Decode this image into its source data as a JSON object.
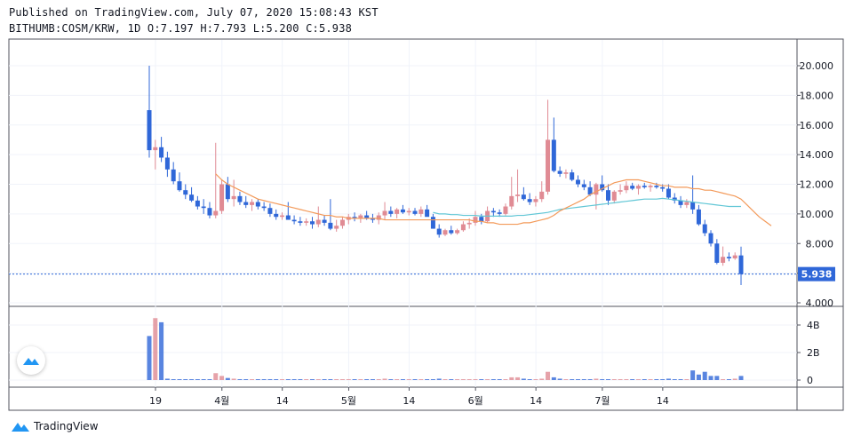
{
  "header": {
    "published": "Published on TradingView.com, July 07, 2020 15:08:43 KST",
    "symbol_line": "BITHUMB:COSM/KRW, 1D O:7.197 H:7.793 L:5.200 C:5.938"
  },
  "footer": {
    "brand": "TradingView"
  },
  "colors": {
    "up": "#e08b94",
    "down": "#2f67d8",
    "ma_fast": "#f39a5a",
    "ma_slow": "#62c7d6",
    "price_line": "#2f67d8"
  },
  "chart_data": {
    "type": "candlestick",
    "price_axis": {
      "ticks": [
        "20.000",
        "18.000",
        "16.000",
        "14.000",
        "12.000",
        "10.000",
        "8.000",
        "6.000",
        "4.000"
      ],
      "ylim": [
        4,
        21
      ]
    },
    "volume_axis": {
      "ticks": [
        "4B",
        "2B",
        "0"
      ]
    },
    "x_ticks": [
      "19",
      "4월",
      "14",
      "5월",
      "14",
      "6월",
      "14",
      "7월",
      "14"
    ],
    "last_price": "5.938",
    "candles": [
      [
        17.0,
        20.0,
        13.8,
        14.3
      ],
      [
        14.3,
        15.0,
        13.0,
        14.5
      ],
      [
        14.5,
        15.2,
        13.5,
        13.8
      ],
      [
        13.8,
        14.2,
        12.5,
        13.0
      ],
      [
        13.0,
        13.5,
        12.0,
        12.2
      ],
      [
        12.2,
        12.8,
        11.5,
        11.6
      ],
      [
        11.6,
        12.0,
        11.0,
        11.3
      ],
      [
        11.3,
        11.8,
        10.8,
        10.9
      ],
      [
        10.9,
        11.2,
        10.3,
        10.5
      ],
      [
        10.5,
        11.0,
        10.0,
        10.4
      ],
      [
        10.4,
        10.8,
        9.7,
        9.9
      ],
      [
        9.9,
        14.8,
        9.7,
        10.2
      ],
      [
        10.2,
        12.3,
        10.0,
        12.0
      ],
      [
        12.0,
        12.5,
        10.8,
        11.0
      ],
      [
        11.0,
        12.3,
        10.5,
        11.2
      ],
      [
        11.2,
        11.5,
        10.6,
        10.8
      ],
      [
        10.8,
        11.2,
        10.4,
        10.6
      ],
      [
        10.6,
        11.0,
        10.2,
        10.8
      ],
      [
        10.8,
        11.0,
        10.3,
        10.5
      ],
      [
        10.5,
        10.8,
        10.2,
        10.4
      ],
      [
        10.4,
        10.7,
        9.8,
        10.0
      ],
      [
        10.0,
        10.3,
        9.6,
        9.8
      ],
      [
        9.8,
        10.1,
        9.6,
        9.9
      ],
      [
        9.9,
        10.8,
        9.7,
        9.6
      ],
      [
        9.6,
        9.9,
        9.3,
        9.5
      ],
      [
        9.5,
        9.8,
        9.2,
        9.4
      ],
      [
        9.4,
        9.7,
        9.2,
        9.5
      ],
      [
        9.5,
        9.8,
        9.0,
        9.3
      ],
      [
        9.3,
        10.5,
        9.1,
        9.6
      ],
      [
        9.6,
        9.9,
        9.2,
        9.4
      ],
      [
        9.4,
        11.0,
        8.9,
        9.0
      ],
      [
        9.0,
        9.6,
        8.8,
        9.2
      ],
      [
        9.2,
        9.8,
        9.0,
        9.6
      ],
      [
        9.6,
        10.0,
        9.3,
        9.8
      ],
      [
        9.8,
        10.1,
        9.5,
        9.7
      ],
      [
        9.7,
        10.0,
        9.4,
        9.9
      ],
      [
        9.9,
        10.2,
        9.6,
        9.7
      ],
      [
        9.7,
        10.0,
        9.4,
        9.6
      ],
      [
        9.6,
        10.1,
        9.3,
        9.9
      ],
      [
        9.9,
        10.8,
        9.6,
        10.2
      ],
      [
        10.2,
        10.5,
        9.8,
        10.0
      ],
      [
        10.0,
        10.4,
        9.7,
        10.3
      ],
      [
        10.3,
        10.6,
        10.0,
        10.1
      ],
      [
        10.1,
        10.4,
        9.9,
        10.2
      ],
      [
        10.2,
        10.4,
        9.9,
        10.0
      ],
      [
        10.0,
        10.5,
        9.8,
        10.3
      ],
      [
        10.3,
        10.6,
        9.9,
        9.8
      ],
      [
        9.8,
        10.0,
        9.0,
        9.0
      ],
      [
        9.0,
        9.3,
        8.4,
        8.6
      ],
      [
        8.6,
        9.0,
        8.5,
        8.9
      ],
      [
        8.9,
        9.2,
        8.6,
        8.7
      ],
      [
        8.7,
        9.0,
        8.6,
        8.9
      ],
      [
        8.9,
        9.5,
        8.8,
        9.3
      ],
      [
        9.3,
        9.7,
        9.0,
        9.4
      ],
      [
        9.4,
        10.2,
        9.2,
        9.8
      ],
      [
        9.8,
        10.0,
        9.3,
        9.5
      ],
      [
        9.5,
        10.5,
        9.4,
        10.2
      ],
      [
        10.2,
        10.4,
        9.8,
        10.1
      ],
      [
        10.1,
        10.3,
        9.8,
        10.0
      ],
      [
        10.0,
        10.7,
        9.9,
        10.5
      ],
      [
        10.5,
        12.5,
        10.3,
        11.2
      ],
      [
        11.2,
        13.0,
        10.8,
        11.3
      ],
      [
        11.3,
        11.8,
        10.9,
        11.0
      ],
      [
        11.0,
        11.4,
        10.6,
        10.8
      ],
      [
        10.8,
        11.2,
        10.5,
        11.0
      ],
      [
        11.0,
        12.2,
        10.8,
        11.5
      ],
      [
        11.5,
        17.7,
        11.3,
        15.0
      ],
      [
        15.0,
        16.5,
        12.8,
        12.9
      ],
      [
        12.9,
        13.2,
        12.5,
        12.7
      ],
      [
        12.7,
        13.0,
        12.4,
        12.8
      ],
      [
        12.8,
        13.0,
        12.2,
        12.3
      ],
      [
        12.3,
        12.6,
        11.8,
        12.0
      ],
      [
        12.0,
        12.3,
        11.6,
        11.8
      ],
      [
        11.8,
        12.2,
        11.2,
        11.3
      ],
      [
        11.3,
        12.1,
        10.3,
        12.0
      ],
      [
        12.0,
        12.6,
        11.5,
        11.6
      ],
      [
        11.6,
        12.0,
        10.6,
        10.9
      ],
      [
        10.9,
        11.6,
        10.7,
        11.5
      ],
      [
        11.5,
        12.0,
        11.3,
        11.6
      ],
      [
        11.6,
        12.2,
        11.4,
        11.9
      ],
      [
        11.9,
        12.1,
        11.6,
        11.7
      ],
      [
        11.7,
        12.0,
        11.3,
        11.9
      ],
      [
        11.9,
        12.1,
        11.7,
        11.8
      ],
      [
        11.8,
        12.0,
        11.5,
        11.9
      ],
      [
        11.9,
        12.1,
        11.7,
        11.8
      ],
      [
        11.8,
        12.0,
        11.5,
        11.7
      ],
      [
        11.7,
        12.0,
        11.0,
        11.1
      ],
      [
        11.1,
        11.4,
        10.7,
        10.9
      ],
      [
        10.9,
        11.2,
        10.4,
        10.6
      ],
      [
        10.6,
        11.0,
        10.4,
        10.8
      ],
      [
        10.8,
        12.6,
        10.0,
        10.3
      ],
      [
        10.3,
        10.6,
        9.2,
        9.3
      ],
      [
        9.3,
        9.6,
        8.5,
        8.7
      ],
      [
        8.7,
        8.9,
        7.8,
        8.0
      ],
      [
        8.0,
        8.3,
        6.6,
        6.7
      ],
      [
        6.7,
        7.8,
        6.5,
        7.1
      ],
      [
        7.1,
        7.4,
        6.8,
        7.0
      ],
      [
        7.0,
        7.4,
        6.9,
        7.2
      ],
      [
        7.197,
        7.793,
        5.2,
        5.938
      ]
    ],
    "volume": [
      3.2,
      4.5,
      4.2,
      0.1,
      0.05,
      0.05,
      0.05,
      0.05,
      0.05,
      0.05,
      0.05,
      0.5,
      0.3,
      0.15,
      0.1,
      0.05,
      0.05,
      0.05,
      0.05,
      0.05,
      0.05,
      0.05,
      0.05,
      0.05,
      0.05,
      0.05,
      0.05,
      0.05,
      0.05,
      0.05,
      0.05,
      0.05,
      0.05,
      0.05,
      0.05,
      0.05,
      0.05,
      0.05,
      0.05,
      0.1,
      0.05,
      0.05,
      0.05,
      0.05,
      0.05,
      0.05,
      0.05,
      0.05,
      0.1,
      0.05,
      0.05,
      0.05,
      0.05,
      0.05,
      0.05,
      0.05,
      0.05,
      0.05,
      0.05,
      0.05,
      0.2,
      0.2,
      0.1,
      0.05,
      0.05,
      0.1,
      0.6,
      0.2,
      0.1,
      0.05,
      0.05,
      0.05,
      0.05,
      0.05,
      0.1,
      0.05,
      0.05,
      0.05,
      0.05,
      0.05,
      0.05,
      0.05,
      0.05,
      0.05,
      0.05,
      0.05,
      0.1,
      0.05,
      0.05,
      0.05,
      0.7,
      0.4,
      0.6,
      0.3,
      0.3,
      0.05,
      0.05,
      0.1,
      0.3
    ],
    "ma_fast": {
      "start": 11,
      "values": [
        12.7,
        12.3,
        12.0,
        11.8,
        11.6,
        11.4,
        11.2,
        11.0,
        10.9,
        10.8,
        10.7,
        10.6,
        10.5,
        10.4,
        10.3,
        10.2,
        10.1,
        10.0,
        9.9,
        9.9,
        9.8,
        9.8,
        9.7,
        9.7,
        9.7,
        9.7,
        9.7,
        9.7,
        9.6,
        9.6,
        9.6,
        9.6,
        9.6,
        9.6,
        9.6,
        9.6,
        9.6,
        9.6,
        9.6,
        9.6,
        9.6,
        9.6,
        9.6,
        9.5,
        9.5,
        9.4,
        9.4,
        9.3,
        9.3,
        9.3,
        9.3,
        9.4,
        9.4,
        9.5,
        9.6,
        9.7,
        9.9,
        10.2,
        10.4,
        10.6,
        10.8,
        11.0,
        11.3,
        11.5,
        11.7,
        11.9,
        12.1,
        12.2,
        12.3,
        12.3,
        12.3,
        12.2,
        12.1,
        12.0,
        11.9,
        11.9,
        11.8,
        11.8,
        11.8,
        11.7,
        11.7,
        11.6,
        11.6,
        11.5,
        11.4,
        11.3,
        11.2,
        11.0,
        10.6,
        10.2,
        9.8,
        9.5,
        9.2
      ]
    },
    "ma_slow": {
      "start": 47,
      "values": [
        10.1,
        10.0,
        10.0,
        9.95,
        9.95,
        9.9,
        9.9,
        9.9,
        9.85,
        9.85,
        9.85,
        9.85,
        9.85,
        9.85,
        9.9,
        9.9,
        9.95,
        10.0,
        10.05,
        10.1,
        10.2,
        10.3,
        10.35,
        10.4,
        10.45,
        10.5,
        10.55,
        10.6,
        10.65,
        10.7,
        10.75,
        10.8,
        10.85,
        10.9,
        10.95,
        11.0,
        11.0,
        11.0,
        11.05,
        11.0,
        10.95,
        10.9,
        10.85,
        10.8,
        10.75,
        10.7,
        10.65,
        10.6,
        10.55,
        10.5,
        10.5,
        10.5
      ]
    }
  }
}
